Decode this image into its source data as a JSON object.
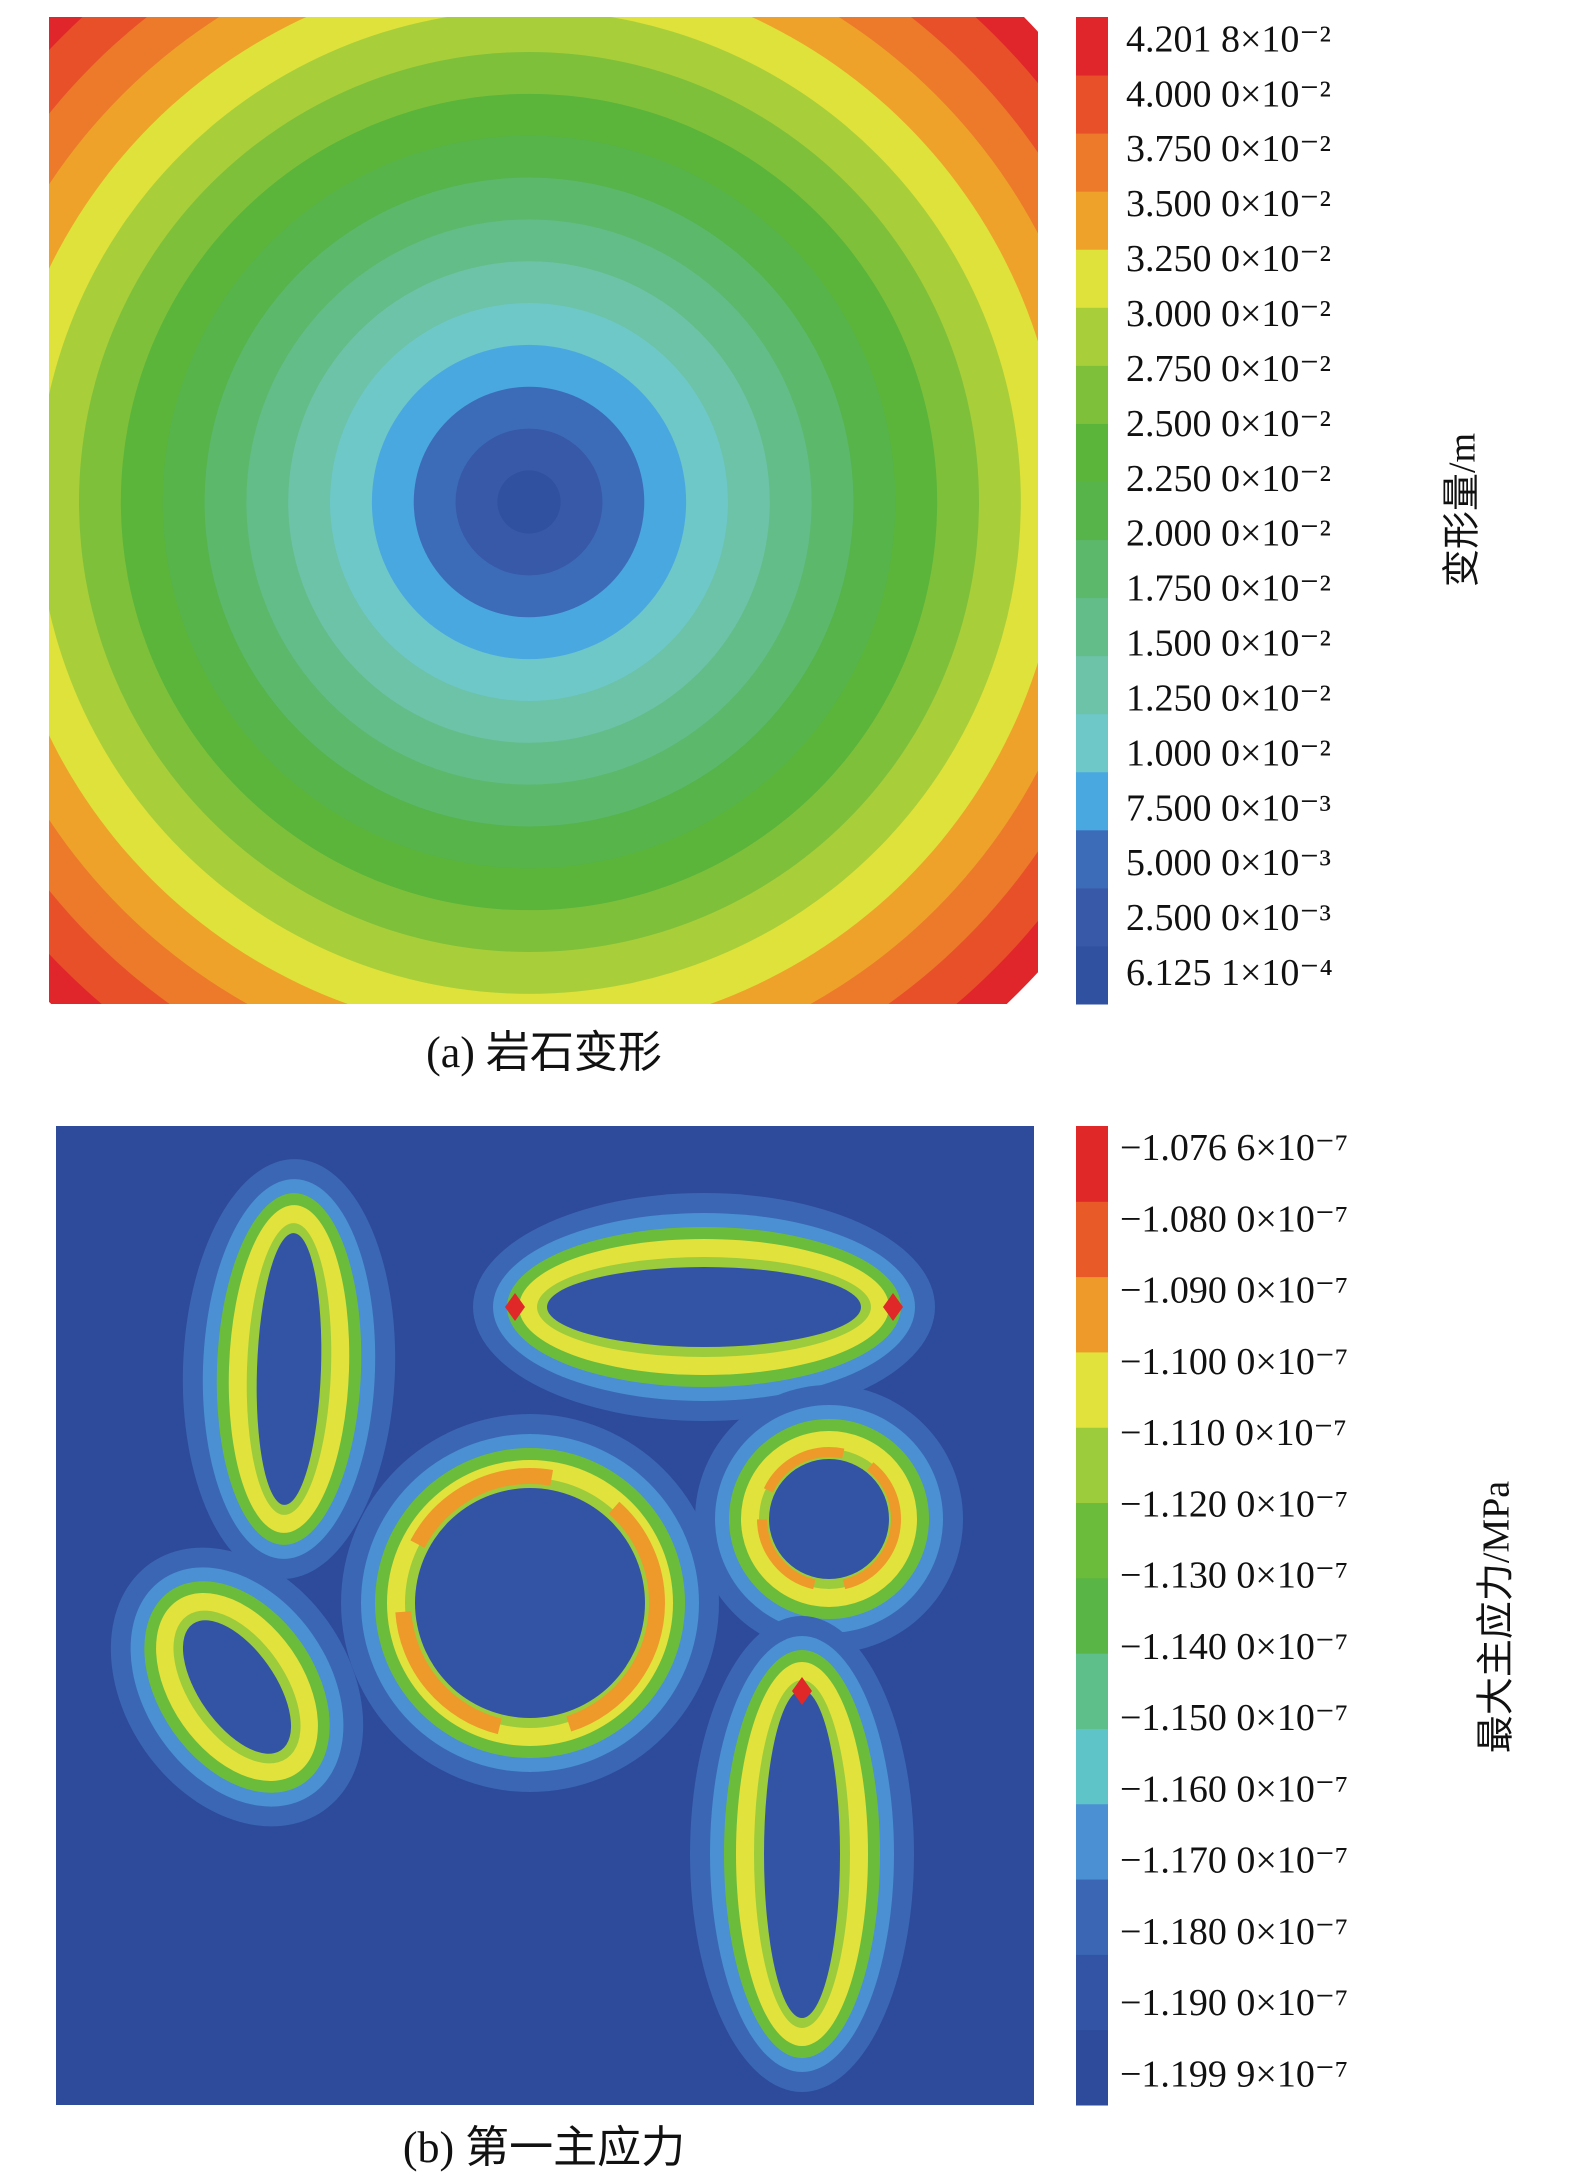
{
  "chart_data": [
    {
      "type": "contour",
      "caption": "(a) 岩石变形",
      "colorbar_label": "变形量/m",
      "levels": [
        {
          "value": 0.00061251,
          "label": "6.125 1×10⁻⁴"
        },
        {
          "value": 0.0025,
          "label": "2.500 0×10⁻³"
        },
        {
          "value": 0.005,
          "label": "5.000 0×10⁻³"
        },
        {
          "value": 0.0075,
          "label": "7.500 0×10⁻³"
        },
        {
          "value": 0.01,
          "label": "1.000 0×10⁻²"
        },
        {
          "value": 0.0125,
          "label": "1.250 0×10⁻²"
        },
        {
          "value": 0.015,
          "label": "1.500 0×10⁻²"
        },
        {
          "value": 0.0175,
          "label": "1.750 0×10⁻²"
        },
        {
          "value": 0.02,
          "label": "2.000 0×10⁻²"
        },
        {
          "value": 0.0225,
          "label": "2.250 0×10⁻²"
        },
        {
          "value": 0.025,
          "label": "2.500 0×10⁻²"
        },
        {
          "value": 0.0275,
          "label": "2.750 0×10⁻²"
        },
        {
          "value": 0.03,
          "label": "3.000 0×10⁻²"
        },
        {
          "value": 0.0325,
          "label": "3.250 0×10⁻²"
        },
        {
          "value": 0.035,
          "label": "3.500 0×10⁻²"
        },
        {
          "value": 0.0375,
          "label": "3.750 0×10⁻²"
        },
        {
          "value": 0.04,
          "label": "4.000 0×10⁻²"
        },
        {
          "value": 0.042018,
          "label": "4.201 8×10⁻²"
        }
      ],
      "colors": [
        "#3050a0",
        "#3858a8",
        "#3c6cb8",
        "#4aa8e0",
        "#6ec8c8",
        "#6cc3a8",
        "#62bd88",
        "#5cb86a",
        "#56b44a",
        "#5ab53a",
        "#7fc03a",
        "#a8cf3a",
        "#dfe23a",
        "#eea22a",
        "#ec7a2a",
        "#e8502a",
        "#e0262a"
      ]
    },
    {
      "type": "contour",
      "caption": "(b) 第一主应力",
      "colorbar_label": "最大主应力/MPa",
      "levels": [
        {
          "value": -1.1999e-07,
          "label": "−1.199 9×10⁻⁷"
        },
        {
          "value": -1.19e-07,
          "label": "−1.190 0×10⁻⁷"
        },
        {
          "value": -1.18e-07,
          "label": "−1.180 0×10⁻⁷"
        },
        {
          "value": -1.17e-07,
          "label": "−1.170 0×10⁻⁷"
        },
        {
          "value": -1.16e-07,
          "label": "−1.160 0×10⁻⁷"
        },
        {
          "value": -1.15e-07,
          "label": "−1.150 0×10⁻⁷"
        },
        {
          "value": -1.14e-07,
          "label": "−1.140 0×10⁻⁷"
        },
        {
          "value": -1.13e-07,
          "label": "−1.130 0×10⁻⁷"
        },
        {
          "value": -1.12e-07,
          "label": "−1.120 0×10⁻⁷"
        },
        {
          "value": -1.11e-07,
          "label": "−1.110 0×10⁻⁷"
        },
        {
          "value": -1.1e-07,
          "label": "−1.100 0×10⁻⁷"
        },
        {
          "value": -1.09e-07,
          "label": "−1.090 0×10⁻⁷"
        },
        {
          "value": -1.08e-07,
          "label": "−1.080 0×10⁻⁷"
        },
        {
          "value": -1.0766e-07,
          "label": "−1.076 6×10⁻⁷"
        }
      ],
      "colors": [
        "#2e4a9a",
        "#3354a4",
        "#3a66b4",
        "#4a90d2",
        "#5ec4c8",
        "#5fbf8a",
        "#58b546",
        "#6cbc3c",
        "#9ccc3c",
        "#e2e23c",
        "#ee9a2a",
        "#e85a28",
        "#e02828"
      ]
    }
  ]
}
